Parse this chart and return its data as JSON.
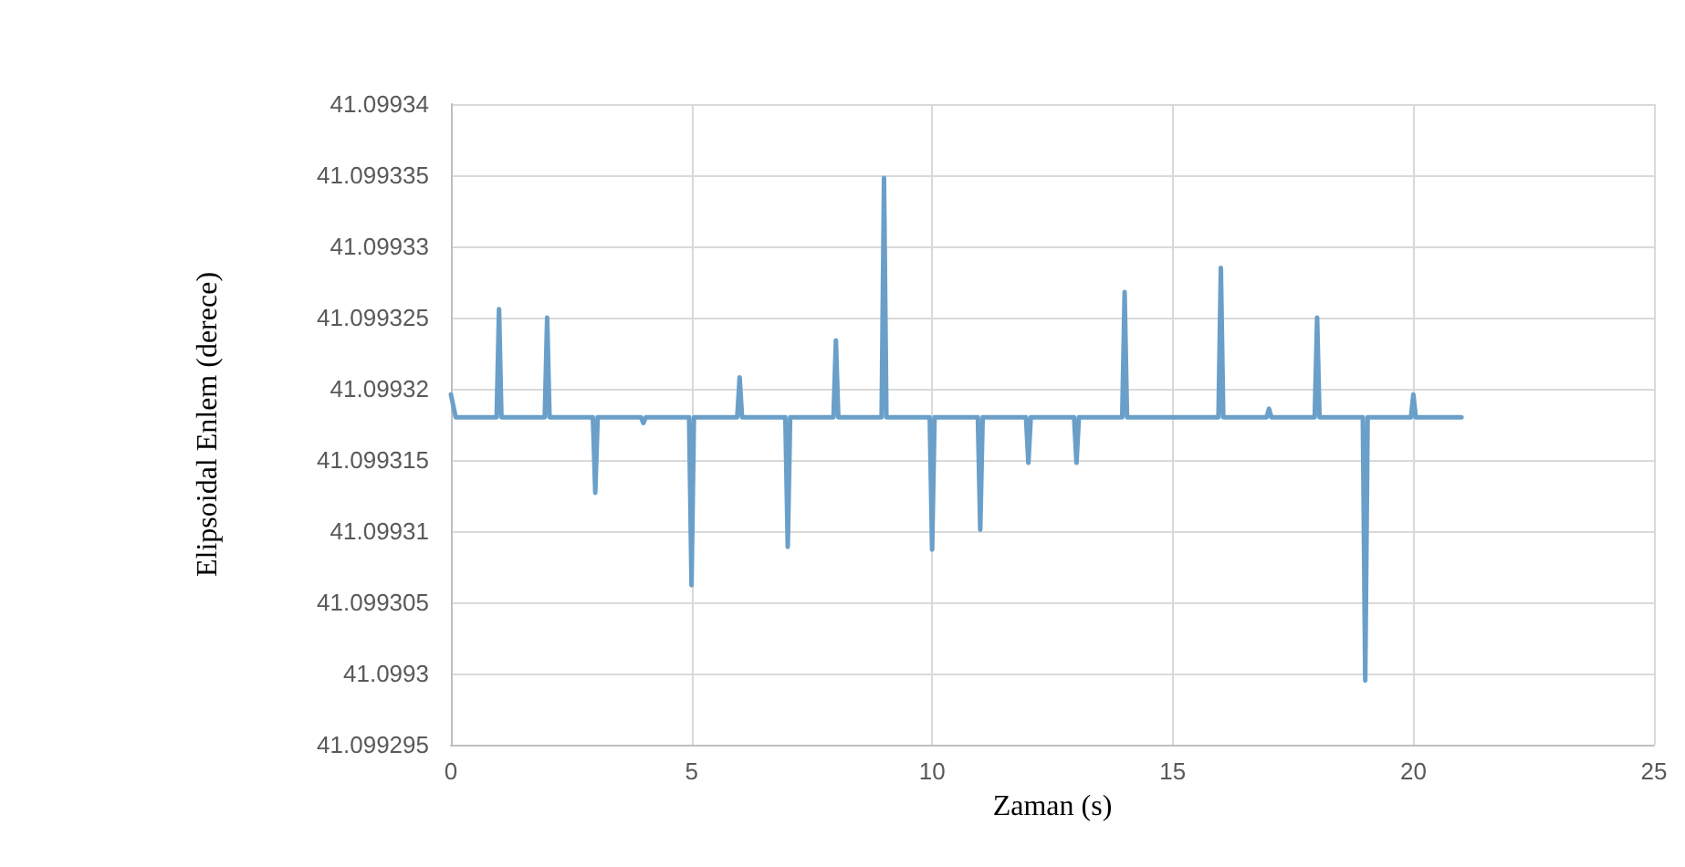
{
  "chart_data": {
    "type": "line",
    "xlabel": "Zaman (s)",
    "ylabel": "Elipsoidal Enlem (derece)",
    "x": [
      0,
      0.1,
      0.95,
      1,
      1.05,
      1.95,
      2,
      2.05,
      2.95,
      3,
      3.05,
      3.95,
      4,
      4.05,
      4.95,
      5,
      5.05,
      5.95,
      6,
      6.05,
      6.95,
      7,
      7.05,
      7.95,
      8,
      8.05,
      8.95,
      9,
      9.05,
      9.95,
      10,
      10.05,
      10.95,
      11,
      11.05,
      11.95,
      12,
      12.05,
      12.95,
      13,
      13.05,
      13.95,
      14,
      14.05,
      15.95,
      16,
      16.05,
      16.95,
      17,
      17.05,
      17.95,
      18,
      18.05,
      18.95,
      19,
      19.05,
      19.95,
      20,
      20.05,
      21
    ],
    "series": [
      {
        "color": "#6a9fc9",
        "values": [
          41.0993196,
          41.099318,
          41.099318,
          41.0993256,
          41.099318,
          41.099318,
          41.099325,
          41.099318,
          41.099318,
          41.0993127,
          41.099318,
          41.099318,
          41.0993176,
          41.099318,
          41.099318,
          41.0993062,
          41.099318,
          41.099318,
          41.0993208,
          41.099318,
          41.099318,
          41.0993089,
          41.099318,
          41.099318,
          41.0993234,
          41.099318,
          41.099318,
          41.0993348,
          41.099318,
          41.099318,
          41.0993087,
          41.099318,
          41.099318,
          41.0993101,
          41.099318,
          41.099318,
          41.0993148,
          41.099318,
          41.099318,
          41.0993148,
          41.099318,
          41.099318,
          41.0993268,
          41.099318,
          41.099318,
          41.0993285,
          41.099318,
          41.099318,
          41.0993186,
          41.099318,
          41.099318,
          41.099325,
          41.099318,
          41.099318,
          41.0992995,
          41.099318,
          41.099318,
          41.0993196,
          41.099318,
          41.099318
        ]
      }
    ],
    "xlim": [
      0,
      25
    ],
    "xticks": [
      0,
      5,
      10,
      15,
      20,
      25
    ],
    "ylim": [
      41.099295,
      41.09934
    ],
    "yticks": [
      41.099295,
      41.0993,
      41.099305,
      41.09931,
      41.099315,
      41.09932,
      41.099325,
      41.09933,
      41.099335,
      41.09934
    ],
    "grid": true,
    "marker": "none",
    "line_style": "solid"
  }
}
